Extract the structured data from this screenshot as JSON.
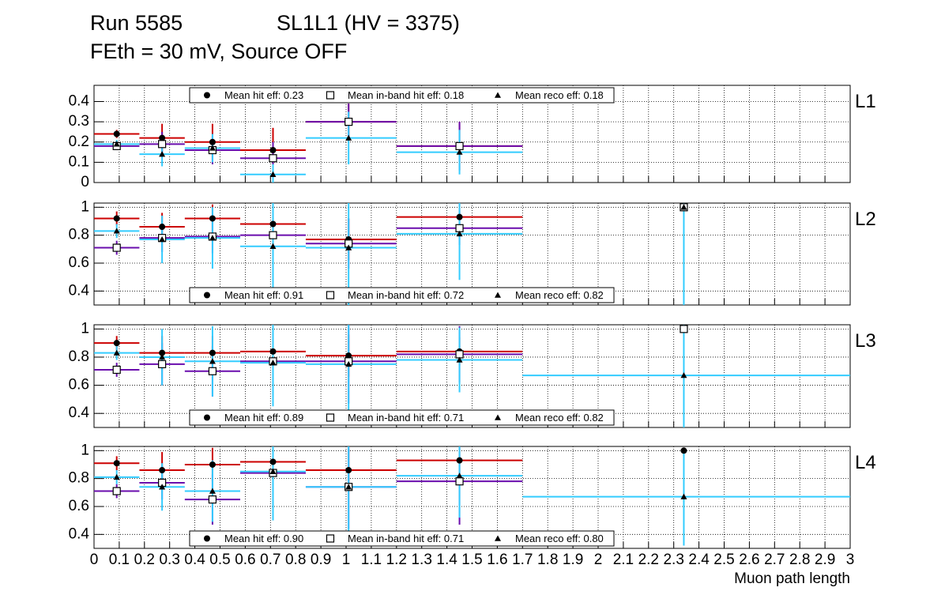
{
  "title": {
    "run": "Run 5585",
    "chamber": "SL1L1 (HV = 3375)",
    "subtitle": "FEth = 30 mV, Source OFF"
  },
  "colors": {
    "hit": "#cc0000",
    "inband": "#6a0dad",
    "reco": "#33ccff",
    "grid": "#000000"
  },
  "chart_data": [
    {
      "type": "scatter",
      "panel_label": "L1",
      "xlim": [
        0,
        3
      ],
      "ylim": [
        0,
        0.48
      ],
      "yticks": [
        0,
        0.1,
        0.2,
        0.3,
        0.4
      ],
      "ytick_labels": [
        "0",
        "0.1",
        "0.2",
        "0.3",
        "0.4"
      ],
      "legend": [
        {
          "marker": "circle",
          "label": "Mean hit  eff: 0.23"
        },
        {
          "marker": "square",
          "label": "Mean in-band hit eff: 0.18"
        },
        {
          "marker": "triangle",
          "label": "Mean reco eff: 0.18"
        }
      ],
      "legend_position": "top",
      "series": [
        {
          "name": "hit",
          "marker": "circle",
          "points": [
            {
              "x": 0.09,
              "xlo": 0.0,
              "xhi": 0.18,
              "y": 0.24,
              "err": 0.02
            },
            {
              "x": 0.27,
              "xlo": 0.18,
              "xhi": 0.36,
              "y": 0.22,
              "err": 0.07
            },
            {
              "x": 0.47,
              "xlo": 0.36,
              "xhi": 0.58,
              "y": 0.2,
              "err": 0.09
            },
            {
              "x": 0.71,
              "xlo": 0.58,
              "xhi": 0.84,
              "y": 0.16,
              "err": 0.11
            },
            {
              "x": 1.01,
              "xlo": 0.84,
              "xhi": 1.2,
              "y": 0.3,
              "err": 0.09
            },
            {
              "x": 1.45,
              "xlo": 1.2,
              "xhi": 1.7,
              "y": 0.18,
              "err": 0.12
            }
          ]
        },
        {
          "name": "inband",
          "marker": "square",
          "points": [
            {
              "x": 0.09,
              "xlo": 0.0,
              "xhi": 0.18,
              "y": 0.18,
              "err": 0.02
            },
            {
              "x": 0.27,
              "xlo": 0.18,
              "xhi": 0.36,
              "y": 0.19,
              "err": 0.06
            },
            {
              "x": 0.47,
              "xlo": 0.36,
              "xhi": 0.58,
              "y": 0.16,
              "err": 0.07
            },
            {
              "x": 0.71,
              "xlo": 0.58,
              "xhi": 0.84,
              "y": 0.12,
              "err": 0.08
            },
            {
              "x": 1.01,
              "xlo": 0.84,
              "xhi": 1.2,
              "y": 0.3,
              "err": 0.09
            },
            {
              "x": 1.45,
              "xlo": 1.2,
              "xhi": 1.7,
              "y": 0.18,
              "err": 0.12
            }
          ]
        },
        {
          "name": "reco",
          "marker": "triangle",
          "points": [
            {
              "x": 0.09,
              "xlo": 0.0,
              "xhi": 0.18,
              "y": 0.19,
              "err": 0.02
            },
            {
              "x": 0.27,
              "xlo": 0.18,
              "xhi": 0.36,
              "y": 0.14,
              "err": 0.06
            },
            {
              "x": 0.47,
              "xlo": 0.36,
              "xhi": 0.58,
              "y": 0.17,
              "err": 0.07
            },
            {
              "x": 0.71,
              "xlo": 0.58,
              "xhi": 0.84,
              "y": 0.04,
              "err": 0.05
            },
            {
              "x": 1.01,
              "xlo": 0.84,
              "xhi": 1.2,
              "y": 0.22,
              "err": 0.13
            },
            {
              "x": 1.45,
              "xlo": 1.2,
              "xhi": 1.7,
              "y": 0.15,
              "err": 0.11
            }
          ]
        }
      ]
    },
    {
      "type": "scatter",
      "panel_label": "L2",
      "xlim": [
        0,
        3
      ],
      "ylim": [
        0.3,
        1.03
      ],
      "yticks": [
        0.4,
        0.6,
        0.8,
        1.0
      ],
      "ytick_labels": [
        "0.4",
        "0.6",
        "0.8",
        "1"
      ],
      "legend": [
        {
          "marker": "circle",
          "label": "Mean hit  eff: 0.91"
        },
        {
          "marker": "square",
          "label": "Mean in-band hit eff: 0.72"
        },
        {
          "marker": "triangle",
          "label": "Mean reco eff: 0.82"
        }
      ],
      "legend_position": "bottom",
      "series": [
        {
          "name": "hit",
          "marker": "circle",
          "points": [
            {
              "x": 0.09,
              "xlo": 0.0,
              "xhi": 0.18,
              "y": 0.92,
              "err": 0.05
            },
            {
              "x": 0.27,
              "xlo": 0.18,
              "xhi": 0.36,
              "y": 0.86,
              "err": 0.1
            },
            {
              "x": 0.47,
              "xlo": 0.36,
              "xhi": 0.58,
              "y": 0.92,
              "err": 0.1
            },
            {
              "x": 0.71,
              "xlo": 0.58,
              "xhi": 0.84,
              "y": 0.88,
              "err": 0.12
            },
            {
              "x": 1.01,
              "xlo": 0.84,
              "xhi": 1.2,
              "y": 0.77,
              "err": 0.15
            },
            {
              "x": 1.45,
              "xlo": 1.2,
              "xhi": 1.7,
              "y": 0.93,
              "err": 0.1
            }
          ]
        },
        {
          "name": "inband",
          "marker": "square",
          "points": [
            {
              "x": 0.09,
              "xlo": 0.0,
              "xhi": 0.18,
              "y": 0.71,
              "err": 0.05
            },
            {
              "x": 0.27,
              "xlo": 0.18,
              "xhi": 0.36,
              "y": 0.78,
              "err": 0.1
            },
            {
              "x": 0.47,
              "xlo": 0.36,
              "xhi": 0.58,
              "y": 0.79,
              "err": 0.12
            },
            {
              "x": 0.71,
              "xlo": 0.58,
              "xhi": 0.84,
              "y": 0.8,
              "err": 0.15
            },
            {
              "x": 1.01,
              "xlo": 0.84,
              "xhi": 1.2,
              "y": 0.74,
              "err": 0.18
            },
            {
              "x": 1.45,
              "xlo": 1.2,
              "xhi": 1.7,
              "y": 0.85,
              "err": 0.12
            },
            {
              "x": 2.34,
              "xlo": 2.34,
              "xhi": 2.34,
              "y": 1.0,
              "err": 0.0
            }
          ]
        },
        {
          "name": "reco",
          "marker": "triangle",
          "points": [
            {
              "x": 0.09,
              "xlo": 0.0,
              "xhi": 0.18,
              "y": 0.83,
              "err": 0.05
            },
            {
              "x": 0.27,
              "xlo": 0.18,
              "xhi": 0.36,
              "y": 0.77,
              "err": 0.17
            },
            {
              "x": 0.47,
              "xlo": 0.36,
              "xhi": 0.58,
              "y": 0.78,
              "err": 0.22
            },
            {
              "x": 0.71,
              "xlo": 0.58,
              "xhi": 0.84,
              "y": 0.72,
              "err": 0.31
            },
            {
              "x": 1.01,
              "xlo": 0.84,
              "xhi": 1.2,
              "y": 0.71,
              "err": 0.41
            },
            {
              "x": 1.45,
              "xlo": 1.2,
              "xhi": 1.7,
              "y": 0.81,
              "err": 0.33
            },
            {
              "x": 2.34,
              "xlo": 2.34,
              "xhi": 2.34,
              "y": 1.0,
              "err": 0.7
            }
          ]
        }
      ]
    },
    {
      "type": "scatter",
      "panel_label": "L3",
      "xlim": [
        0,
        3
      ],
      "ylim": [
        0.3,
        1.03
      ],
      "yticks": [
        0.4,
        0.6,
        0.8,
        1.0
      ],
      "ytick_labels": [
        "0.4",
        "0.6",
        "0.8",
        "1"
      ],
      "legend": [
        {
          "marker": "circle",
          "label": "Mean hit  eff: 0.89"
        },
        {
          "marker": "square",
          "label": "Mean in-band hit eff: 0.71"
        },
        {
          "marker": "triangle",
          "label": "Mean reco eff: 0.82"
        }
      ],
      "legend_position": "bottom",
      "series": [
        {
          "name": "hit",
          "marker": "circle",
          "points": [
            {
              "x": 0.09,
              "xlo": 0.0,
              "xhi": 0.18,
              "y": 0.9,
              "err": 0.05
            },
            {
              "x": 0.27,
              "xlo": 0.18,
              "xhi": 0.36,
              "y": 0.83,
              "err": 0.12
            },
            {
              "x": 0.47,
              "xlo": 0.36,
              "xhi": 0.58,
              "y": 0.83,
              "err": 0.12
            },
            {
              "x": 0.71,
              "xlo": 0.58,
              "xhi": 0.84,
              "y": 0.84,
              "err": 0.12
            },
            {
              "x": 1.01,
              "xlo": 0.84,
              "xhi": 1.2,
              "y": 0.81,
              "err": 0.15
            },
            {
              "x": 1.45,
              "xlo": 1.2,
              "xhi": 1.7,
              "y": 0.84,
              "err": 0.1
            }
          ]
        },
        {
          "name": "inband",
          "marker": "square",
          "points": [
            {
              "x": 0.09,
              "xlo": 0.0,
              "xhi": 0.18,
              "y": 0.71,
              "err": 0.05
            },
            {
              "x": 0.27,
              "xlo": 0.18,
              "xhi": 0.36,
              "y": 0.75,
              "err": 0.15
            },
            {
              "x": 0.47,
              "xlo": 0.36,
              "xhi": 0.58,
              "y": 0.7,
              "err": 0.18
            },
            {
              "x": 0.71,
              "xlo": 0.58,
              "xhi": 0.84,
              "y": 0.77,
              "err": 0.25
            },
            {
              "x": 1.01,
              "xlo": 0.84,
              "xhi": 1.2,
              "y": 0.77,
              "err": 0.3
            },
            {
              "x": 1.45,
              "xlo": 1.2,
              "xhi": 1.7,
              "y": 0.82,
              "err": 0.2
            },
            {
              "x": 2.34,
              "xlo": 2.34,
              "xhi": 2.34,
              "y": 1.0,
              "err": 0.0
            }
          ]
        },
        {
          "name": "reco",
          "marker": "triangle",
          "points": [
            {
              "x": 0.09,
              "xlo": 0.0,
              "xhi": 0.18,
              "y": 0.83,
              "err": 0.05
            },
            {
              "x": 0.27,
              "xlo": 0.18,
              "xhi": 0.36,
              "y": 0.8,
              "err": 0.2
            },
            {
              "x": 0.47,
              "xlo": 0.36,
              "xhi": 0.58,
              "y": 0.77,
              "err": 0.25
            },
            {
              "x": 0.71,
              "xlo": 0.58,
              "xhi": 0.84,
              "y": 0.76,
              "err": 0.31
            },
            {
              "x": 1.01,
              "xlo": 0.84,
              "xhi": 1.2,
              "y": 0.75,
              "err": 0.33
            },
            {
              "x": 1.45,
              "xlo": 1.2,
              "xhi": 1.7,
              "y": 0.78,
              "err": 0.23
            },
            {
              "x": 2.34,
              "xlo": 1.7,
              "xhi": 3.0,
              "y": 0.67,
              "err": 0.5
            }
          ]
        }
      ]
    },
    {
      "type": "scatter",
      "panel_label": "L4",
      "xlim": [
        0,
        3
      ],
      "ylim": [
        0.3,
        1.03
      ],
      "yticks": [
        0.4,
        0.6,
        0.8,
        1.0
      ],
      "ytick_labels": [
        "0.4",
        "0.6",
        "0.8",
        "1"
      ],
      "legend": [
        {
          "marker": "circle",
          "label": "Mean hit  eff: 0.90"
        },
        {
          "marker": "square",
          "label": "Mean in-band hit eff: 0.71"
        },
        {
          "marker": "triangle",
          "label": "Mean reco eff: 0.80"
        }
      ],
      "legend_position": "bottom",
      "series": [
        {
          "name": "hit",
          "marker": "circle",
          "points": [
            {
              "x": 0.09,
              "xlo": 0.0,
              "xhi": 0.18,
              "y": 0.91,
              "err": 0.05
            },
            {
              "x": 0.27,
              "xlo": 0.18,
              "xhi": 0.36,
              "y": 0.86,
              "err": 0.13
            },
            {
              "x": 0.47,
              "xlo": 0.36,
              "xhi": 0.58,
              "y": 0.9,
              "err": 0.12
            },
            {
              "x": 0.71,
              "xlo": 0.58,
              "xhi": 0.84,
              "y": 0.92,
              "err": 0.1
            },
            {
              "x": 1.01,
              "xlo": 0.84,
              "xhi": 1.2,
              "y": 0.86,
              "err": 0.15
            },
            {
              "x": 1.45,
              "xlo": 1.2,
              "xhi": 1.7,
              "y": 0.93,
              "err": 0.1
            },
            {
              "x": 2.34,
              "xlo": 2.34,
              "xhi": 2.34,
              "y": 1.0,
              "err": 0.0
            }
          ]
        },
        {
          "name": "inband",
          "marker": "square",
          "points": [
            {
              "x": 0.09,
              "xlo": 0.0,
              "xhi": 0.18,
              "y": 0.71,
              "err": 0.05
            },
            {
              "x": 0.27,
              "xlo": 0.18,
              "xhi": 0.36,
              "y": 0.77,
              "err": 0.12
            },
            {
              "x": 0.47,
              "xlo": 0.36,
              "xhi": 0.58,
              "y": 0.65,
              "err": 0.18
            },
            {
              "x": 0.71,
              "xlo": 0.58,
              "xhi": 0.84,
              "y": 0.84,
              "err": 0.25
            },
            {
              "x": 1.01,
              "xlo": 0.84,
              "xhi": 1.2,
              "y": 0.74,
              "err": 0.3
            },
            {
              "x": 1.45,
              "xlo": 1.2,
              "xhi": 1.7,
              "y": 0.78,
              "err": 0.31
            }
          ]
        },
        {
          "name": "reco",
          "marker": "triangle",
          "points": [
            {
              "x": 0.09,
              "xlo": 0.0,
              "xhi": 0.18,
              "y": 0.81,
              "err": 0.05
            },
            {
              "x": 0.27,
              "xlo": 0.18,
              "xhi": 0.36,
              "y": 0.74,
              "err": 0.17
            },
            {
              "x": 0.47,
              "xlo": 0.36,
              "xhi": 0.58,
              "y": 0.71,
              "err": 0.22
            },
            {
              "x": 0.71,
              "xlo": 0.58,
              "xhi": 0.84,
              "y": 0.85,
              "err": 0.35
            },
            {
              "x": 1.01,
              "xlo": 0.84,
              "xhi": 1.2,
              "y": 0.74,
              "err": 0.32
            },
            {
              "x": 1.45,
              "xlo": 1.2,
              "xhi": 1.7,
              "y": 0.82,
              "err": 0.3
            },
            {
              "x": 2.34,
              "xlo": 1.7,
              "xhi": 3.0,
              "y": 0.67,
              "err": 0.35
            }
          ]
        }
      ]
    }
  ],
  "x_axis": {
    "label": "Muon path length",
    "tick_values": [
      0,
      0.1,
      0.2,
      0.3,
      0.4,
      0.5,
      0.6,
      0.7,
      0.8,
      0.9,
      1,
      1.1,
      1.2,
      1.3,
      1.4,
      1.5,
      1.6,
      1.7,
      1.8,
      1.9,
      2,
      2.1,
      2.2,
      2.3,
      2.4,
      2.5,
      2.6,
      2.7,
      2.8,
      2.9,
      3
    ],
    "tick_labels": [
      "0",
      "0.1",
      "0.2",
      "0.3",
      "0.4",
      "0.5",
      "0.6",
      "0.7",
      "0.8",
      "0.9",
      "1",
      "1.1",
      "1.2",
      "1.3",
      "1.4",
      "1.5",
      "1.6",
      "1.7",
      "1.8",
      "1.9",
      "2",
      "2.1",
      "2.2",
      "2.3",
      "2.4",
      "2.5",
      "2.6",
      "2.7",
      "2.8",
      "2.9",
      "3"
    ]
  }
}
